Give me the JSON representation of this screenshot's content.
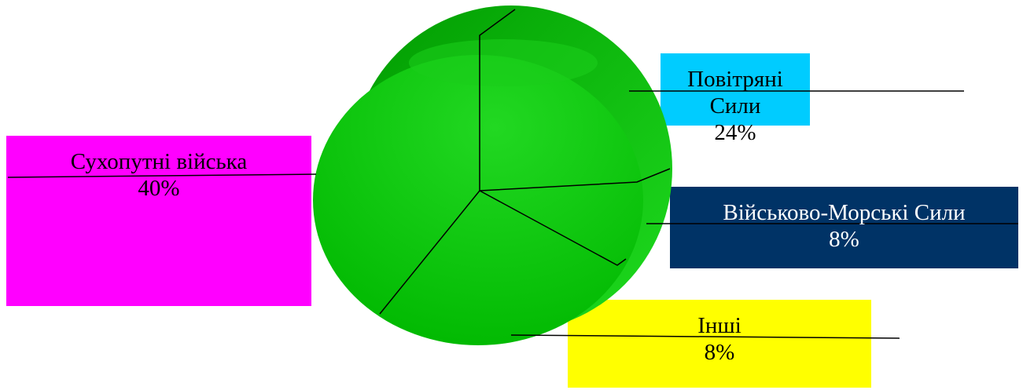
{
  "chart_data": {
    "type": "pie",
    "title": "",
    "slices": [
      {
        "label": "Повітряні Сили",
        "value_label": "24%",
        "value": 24,
        "box_color": "#00ccff"
      },
      {
        "label": "Військово-Морські Сили",
        "value_label": "8%",
        "value": 8,
        "box_color": "#003366"
      },
      {
        "label": "Інші",
        "value_label": "8%",
        "value": 8,
        "box_color": "#ffff00"
      },
      {
        "label": "Сухопутні війська",
        "value_label": "40%",
        "value": 40,
        "box_color": "#ff00ff"
      }
    ],
    "pie_color": "#00c000",
    "pie_style": "3d"
  }
}
